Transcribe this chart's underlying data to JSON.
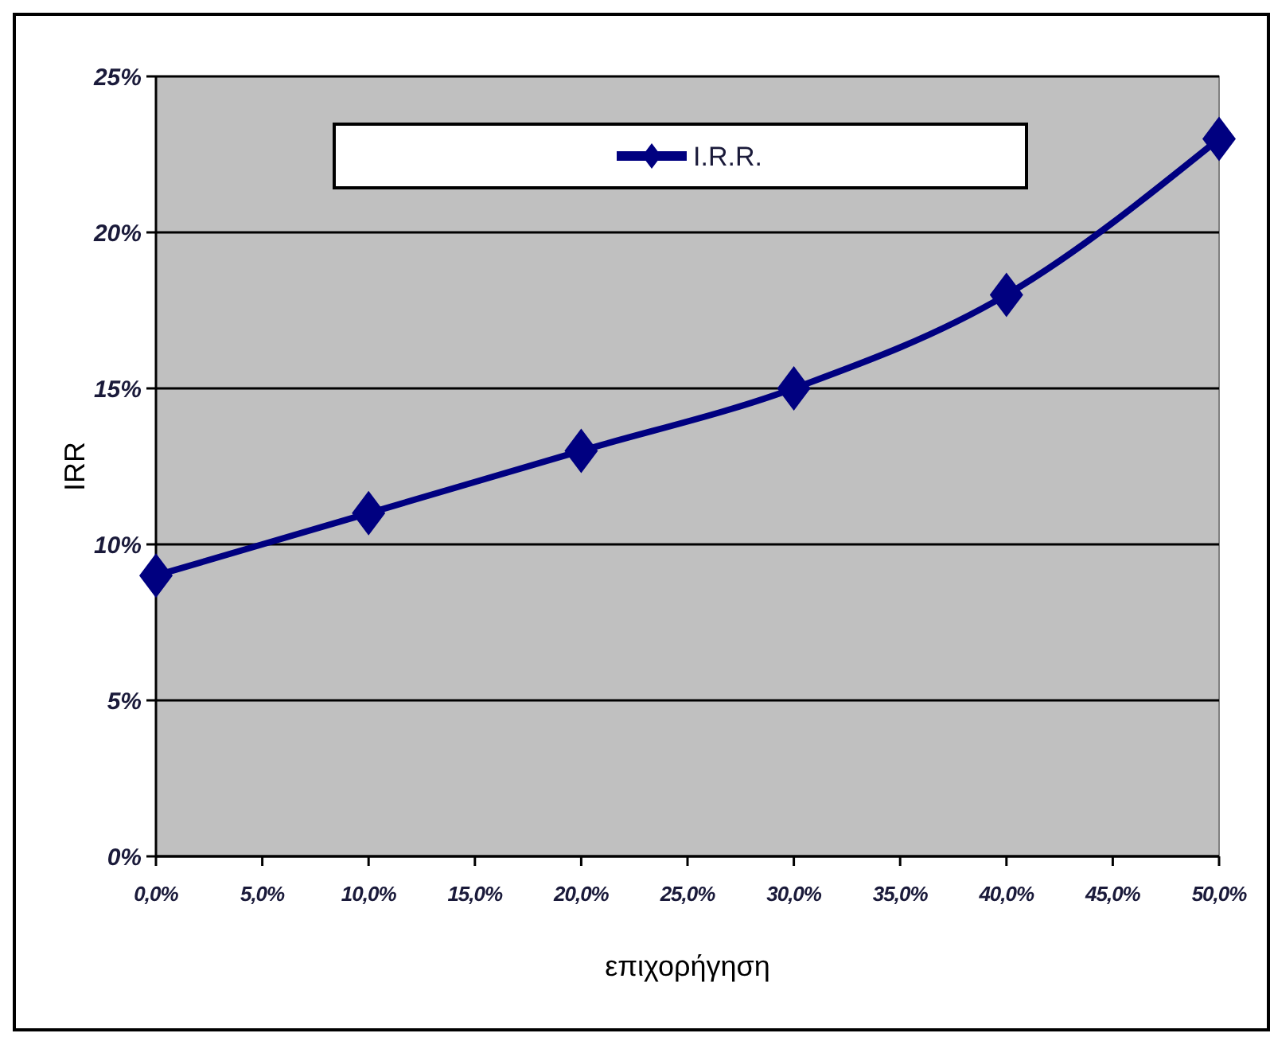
{
  "chart_data": {
    "type": "line",
    "xlabel": "επιχορήγηση",
    "ylabel": "IRR",
    "x": [
      0,
      10,
      20,
      30,
      40,
      50
    ],
    "series": [
      {
        "name": "I.R.R.",
        "color": "#000080",
        "values": [
          9,
          11,
          13,
          15,
          18,
          23
        ]
      }
    ],
    "xlim": [
      0,
      50
    ],
    "ylim": [
      0,
      25
    ],
    "xticks": [
      {
        "value": 0,
        "label": "0,0%"
      },
      {
        "value": 5,
        "label": "5,0%"
      },
      {
        "value": 10,
        "label": "10,0%"
      },
      {
        "value": 15,
        "label": "15,0%"
      },
      {
        "value": 20,
        "label": "20,0%"
      },
      {
        "value": 25,
        "label": "25,0%"
      },
      {
        "value": 30,
        "label": "30,0%"
      },
      {
        "value": 35,
        "label": "35,0%"
      },
      {
        "value": 40,
        "label": "40,0%"
      },
      {
        "value": 45,
        "label": "45,0%"
      },
      {
        "value": 50,
        "label": "50,0%"
      }
    ],
    "yticks": [
      {
        "value": 0,
        "label": "0%"
      },
      {
        "value": 5,
        "label": "5%"
      },
      {
        "value": 10,
        "label": "10%"
      },
      {
        "value": 15,
        "label": "15%"
      },
      {
        "value": 20,
        "label": "20%"
      },
      {
        "value": 25,
        "label": "25%"
      }
    ],
    "grid": "y",
    "legend": "top",
    "marker": "diamond",
    "line_style": "solid"
  }
}
